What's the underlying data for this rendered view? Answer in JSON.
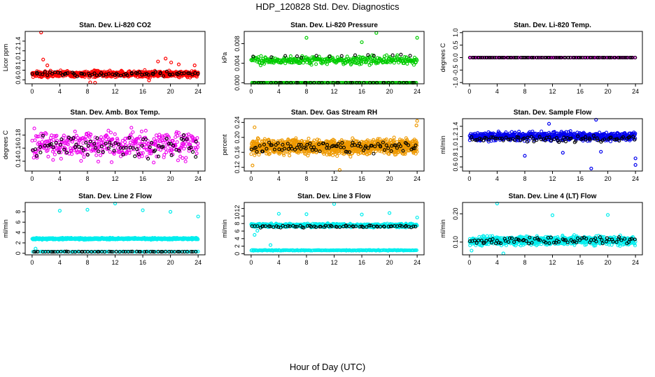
{
  "page": {
    "title": "HDP_120828  Std. Dev. Diagnostics",
    "x_caption": "Hour of Day (UTC)"
  },
  "chart_data": [
    {
      "type": "scatter",
      "title": "Stan. Dev. Li-820 CO2",
      "ylabel": "Licor ppm",
      "xticks": [
        "0",
        "4",
        "8",
        "12",
        "16",
        "20",
        "24"
      ],
      "xlim": [
        -1,
        25
      ],
      "yticks": [
        0.6,
        0.8,
        1.0,
        1.2,
        1.4
      ],
      "ytick_labels": [
        "0.6",
        "0.8",
        "1.0",
        "1.2",
        "1.4"
      ],
      "ylim": [
        0.52,
        1.6
      ],
      "grid": false,
      "color": "#ff0000",
      "series": [
        {
          "kind": "band",
          "x": [
            0,
            24
          ],
          "center": 0.72,
          "spread": 0.09,
          "count": 700
        },
        {
          "kind": "black",
          "x": [
            0,
            24
          ],
          "center": 0.72,
          "spread": 0.07,
          "count": 70
        },
        {
          "kind": "outliers",
          "points": [
            [
              1.3,
              1.58
            ],
            [
              1.6,
              1.02
            ],
            [
              2.2,
              0.9
            ],
            [
              18.2,
              0.98
            ],
            [
              19.3,
              1.04
            ],
            [
              20.1,
              0.96
            ],
            [
              21.2,
              0.92
            ],
            [
              23.5,
              0.9
            ],
            [
              8.4,
              0.55
            ],
            [
              9.1,
              0.54
            ],
            [
              16.9,
              0.59
            ]
          ]
        }
      ]
    },
    {
      "type": "scatter",
      "title": "Stan. Dev. Li-820 Pressure",
      "ylabel": "kPa",
      "xticks": [
        "0",
        "4",
        "8",
        "12",
        "16",
        "20",
        "24"
      ],
      "xlim": [
        -1,
        25
      ],
      "yticks": [
        0.0,
        0.004,
        0.008
      ],
      "ytick_labels": [
        "0.000",
        "0.004",
        "0.008"
      ],
      "ylim": [
        -0.0002,
        0.0105
      ],
      "grid": false,
      "color": "#00cc00",
      "series": [
        {
          "kind": "band",
          "x": [
            0,
            24
          ],
          "center": 0.0,
          "spread": 0.0,
          "count": 160
        },
        {
          "kind": "band",
          "x": [
            0,
            24
          ],
          "center": 0.0046,
          "spread": 0.0012,
          "count": 330
        },
        {
          "kind": "black",
          "x": [
            0,
            24
          ],
          "center": 0.0,
          "spread": 0.0,
          "count": 40
        },
        {
          "kind": "black",
          "x": [
            0,
            24
          ],
          "center": 0.0055,
          "spread": 0.0006,
          "count": 14
        },
        {
          "kind": "outliers",
          "points": [
            [
              8,
              0.0092
            ],
            [
              16,
              0.0083
            ],
            [
              18.1,
              0.0102
            ],
            [
              24,
              0.0092
            ]
          ]
        }
      ]
    },
    {
      "type": "scatter",
      "title": "Stan. Dev. Li-820 Temp.",
      "ylabel": "degrees C",
      "xticks": [
        "0",
        "4",
        "8",
        "12",
        "16",
        "20",
        "24"
      ],
      "xlim": [
        -1,
        25
      ],
      "yticks": [
        -1.0,
        -0.5,
        0.0,
        0.5,
        1.0
      ],
      "ytick_labels": [
        "-1.0",
        "-0.5",
        "0.0",
        "0.5",
        "1.0"
      ],
      "ylim": [
        -1.05,
        1.05
      ],
      "grid": false,
      "color": "#ff00ff",
      "series": [
        {
          "kind": "band",
          "x": [
            0,
            24
          ],
          "center": 0.0,
          "spread": 0.0,
          "count": 120
        },
        {
          "kind": "black",
          "x": [
            0,
            24
          ],
          "center": 0.0,
          "spread": 0.0,
          "count": 96
        }
      ]
    },
    {
      "type": "scatter",
      "title": "Stan. Dev. Amb. Box Temp.",
      "ylabel": "degrees C",
      "xticks": [
        "0",
        "4",
        "8",
        "12",
        "16",
        "20",
        "24"
      ],
      "xlim": [
        -1,
        25
      ],
      "yticks": [
        0.14,
        0.16,
        0.18
      ],
      "ytick_labels": [
        "0.14",
        "0.16",
        "0.18"
      ],
      "ylim": [
        0.125,
        0.205
      ],
      "grid": false,
      "color": "#ee00ee",
      "series": [
        {
          "kind": "band",
          "x": [
            0,
            24
          ],
          "center": 0.165,
          "spread": 0.03,
          "count": 420
        },
        {
          "kind": "black",
          "x": [
            0,
            24
          ],
          "center": 0.163,
          "spread": 0.025,
          "count": 80
        }
      ]
    },
    {
      "type": "scatter",
      "title": "Stan. Dev. Gas Stream RH",
      "ylabel": "percent",
      "xticks": [
        "0",
        "4",
        "8",
        "12",
        "16",
        "20",
        "24"
      ],
      "xlim": [
        -1,
        25
      ],
      "yticks": [
        0.12,
        0.16,
        0.2,
        0.24
      ],
      "ytick_labels": [
        "0.12",
        "0.16",
        "0.20",
        "0.24"
      ],
      "ylim": [
        0.11,
        0.25
      ],
      "grid": false,
      "color": "#ee9900",
      "series": [
        {
          "kind": "band",
          "x": [
            0,
            24
          ],
          "center": 0.175,
          "spread": 0.028,
          "count": 1100
        },
        {
          "kind": "black",
          "x": [
            0,
            24
          ],
          "center": 0.175,
          "spread": 0.022,
          "count": 90
        },
        {
          "kind": "outliers",
          "points": [
            [
              0.2,
              0.125
            ],
            [
              0.5,
              0.227
            ],
            [
              12.8,
              0.112
            ],
            [
              24,
              0.244
            ],
            [
              23.9,
              0.232
            ]
          ]
        }
      ]
    },
    {
      "type": "scatter",
      "title": "Stan. Dev. Sample Flow",
      "ylabel": "ml/min",
      "xticks": [
        "0",
        "4",
        "8",
        "12",
        "16",
        "20",
        "24"
      ],
      "xlim": [
        -1,
        25
      ],
      "yticks": [
        0.6,
        0.8,
        1.0,
        1.2,
        1.4
      ],
      "ytick_labels": [
        "0.6",
        "0.8",
        "1.0",
        "1.2",
        "1.4"
      ],
      "ylim": [
        0.52,
        1.55
      ],
      "grid": false,
      "color": "#0000ee",
      "series": [
        {
          "kind": "band",
          "x": [
            0,
            24
          ],
          "center": 1.2,
          "spread": 0.12,
          "count": 650
        },
        {
          "kind": "black",
          "x": [
            0,
            24
          ],
          "center": 1.15,
          "spread": 0.08,
          "count": 80
        },
        {
          "kind": "outliers",
          "points": [
            [
              8,
              0.82
            ],
            [
              11.5,
              1.45
            ],
            [
              17.6,
              0.57
            ],
            [
              18.3,
              1.53
            ],
            [
              24,
              0.64
            ],
            [
              24,
              0.77
            ],
            [
              13.5,
              0.88
            ],
            [
              19,
              0.9
            ]
          ]
        }
      ]
    },
    {
      "type": "scatter",
      "title": "Stan. Dev. Line 2 Flow",
      "ylabel": "ml/min",
      "xticks": [
        "0",
        "4",
        "8",
        "12",
        "16",
        "20",
        "24"
      ],
      "xlim": [
        -1,
        25
      ],
      "yticks": [
        0,
        2,
        4,
        6,
        8
      ],
      "ytick_labels": [
        "0",
        "2",
        "4",
        "6",
        "8"
      ],
      "ylim": [
        -0.3,
        9.8
      ],
      "grid": false,
      "color": "#00eeee",
      "series": [
        {
          "kind": "band",
          "x": [
            0,
            24
          ],
          "center": 2.8,
          "spread": 0.25,
          "count": 650
        },
        {
          "kind": "band",
          "x": [
            0,
            24
          ],
          "center": 0.3,
          "spread": 0.05,
          "count": 120
        },
        {
          "kind": "black",
          "x": [
            0,
            24
          ],
          "center": 0.3,
          "spread": 0.05,
          "count": 60
        },
        {
          "kind": "outliers",
          "points": [
            [
              0.5,
              0.9
            ],
            [
              4,
              8.2
            ],
            [
              8,
              8.4
            ],
            [
              12,
              9.6
            ],
            [
              16,
              8.3
            ],
            [
              20,
              8.0
            ],
            [
              24,
              7.1
            ]
          ]
        }
      ]
    },
    {
      "type": "scatter",
      "title": "Stan. Dev. Line 3 Flow",
      "ylabel": "ml/min",
      "xticks": [
        "0",
        "4",
        "8",
        "12",
        "16",
        "20",
        "24"
      ],
      "xlim": [
        -1,
        25
      ],
      "yticks": [
        0,
        2,
        4,
        6,
        8,
        10,
        12
      ],
      "ytick_labels": [
        "0",
        "2",
        "4",
        "6",
        "8",
        "10",
        "12"
      ],
      "ylim": [
        -0.3,
        13.6
      ],
      "grid": false,
      "color": "#00eeee",
      "series": [
        {
          "kind": "band",
          "x": [
            0,
            24
          ],
          "center": 7.5,
          "spread": 0.7,
          "count": 650
        },
        {
          "kind": "band",
          "x": [
            0,
            24
          ],
          "center": 0.9,
          "spread": 0.15,
          "count": 220
        },
        {
          "kind": "black",
          "x": [
            0,
            24
          ],
          "center": 7.2,
          "spread": 0.4,
          "count": 70
        },
        {
          "kind": "outliers",
          "points": [
            [
              0.5,
              5.0
            ],
            [
              0.9,
              6.1
            ],
            [
              4,
              10.6
            ],
            [
              8,
              10.5
            ],
            [
              12,
              13.2
            ],
            [
              16,
              10.4
            ],
            [
              20,
              10.8
            ],
            [
              24,
              9.6
            ],
            [
              2.8,
              2.3
            ]
          ]
        }
      ]
    },
    {
      "type": "scatter",
      "title": "Stan. Dev. Line 4 (LT) Flow",
      "ylabel": "ml/min",
      "xticks": [
        "0",
        "4",
        "8",
        "12",
        "16",
        "20",
        "24"
      ],
      "xlim": [
        -1,
        25
      ],
      "yticks": [
        0.1,
        0.2
      ],
      "ytick_labels": [
        "0.10",
        "0.20"
      ],
      "ylim": [
        0.055,
        0.24
      ],
      "grid": false,
      "color": "#00eeee",
      "series": [
        {
          "kind": "band",
          "x": [
            0,
            24
          ],
          "center": 0.105,
          "spread": 0.022,
          "count": 700
        },
        {
          "kind": "black",
          "x": [
            0,
            24
          ],
          "center": 0.105,
          "spread": 0.02,
          "count": 80
        },
        {
          "kind": "outliers",
          "points": [
            [
              4,
              0.237
            ],
            [
              12,
              0.195
            ],
            [
              20,
              0.196
            ],
            [
              4.9,
              0.06
            ],
            [
              0.3,
              0.07
            ]
          ]
        }
      ]
    }
  ]
}
